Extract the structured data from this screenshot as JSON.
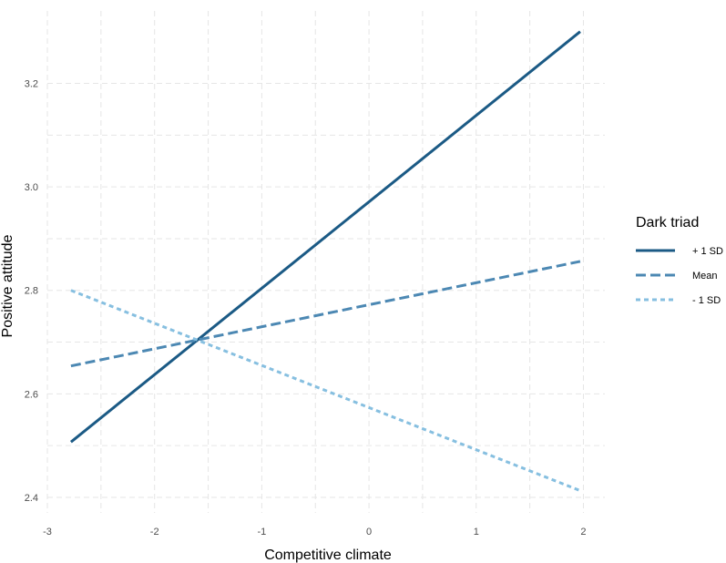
{
  "chart_data": {
    "type": "line",
    "xlabel": "Competitive climate",
    "ylabel": "Positive attitude",
    "xlim": [
      -3.0,
      2.2
    ],
    "ylim": [
      2.37,
      3.34
    ],
    "x_ticks": [
      -3,
      -2,
      -1,
      0,
      1,
      2
    ],
    "y_ticks": [
      2.4,
      2.6,
      2.8,
      3.0,
      3.2
    ],
    "x_tick_labels": [
      "-3",
      "-2",
      "-1",
      "0",
      "1",
      "2"
    ],
    "y_tick_labels": [
      "2.4",
      "2.6",
      "2.8",
      "3.0",
      "3.2"
    ],
    "grid": true,
    "legend": {
      "title": "Dark triad",
      "placement": "right"
    },
    "series": [
      {
        "name": "+ 1 SD",
        "x": [
          -2.78,
          1.97
        ],
        "y": [
          2.507,
          3.3
        ],
        "color": "#1b5a85",
        "dash": "solid"
      },
      {
        "name": "Mean",
        "x": [
          -2.78,
          1.97
        ],
        "y": [
          2.654,
          2.856
        ],
        "color": "#4c88b3",
        "dash": "dashed"
      },
      {
        "name": "- 1 SD",
        "x": [
          -2.78,
          1.97
        ],
        "y": [
          2.8,
          2.413
        ],
        "color": "#86bfe0",
        "dash": "dotted"
      }
    ]
  }
}
